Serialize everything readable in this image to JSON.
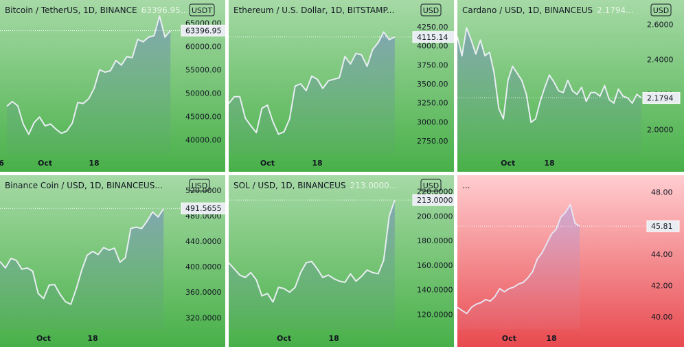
{
  "chart_data": [
    {
      "type": "area",
      "symbol": "Bitcoin / TetherUS, 1D, BINANCE",
      "last_label": "63396.95...",
      "currency": "USDT",
      "last_value": "63396.95",
      "theme": "green",
      "x_ticks": [
        {
          "i": -1,
          "label": "6"
        },
        {
          "i": 7,
          "label": "Oct"
        },
        {
          "i": 16,
          "label": "18"
        }
      ],
      "y_ticks": [
        "65000.00",
        "60000.00",
        "55000.00",
        "50000.00",
        "45000.00",
        "40000.00"
      ],
      "ylim": [
        37000,
        67000
      ],
      "last": 63396.95,
      "values": [
        47200,
        48200,
        47300,
        43400,
        41200,
        43700,
        44900,
        43000,
        43400,
        42300,
        41400,
        41900,
        43600,
        48000,
        47800,
        48800,
        51000,
        55000,
        54500,
        54800,
        57000,
        56000,
        57800,
        57600,
        61500,
        61000,
        62000,
        62300,
        66500,
        62000,
        63400
      ]
    },
    {
      "type": "area",
      "symbol": "Ethereum / U.S. Dollar, 1D, BITSTAMP...",
      "last_label": "",
      "currency": "USD",
      "last_value": "4115.14",
      "theme": "green",
      "x_ticks": [
        {
          "i": 7,
          "label": "Oct"
        },
        {
          "i": 16,
          "label": "18"
        }
      ],
      "y_ticks": [
        "4250.00",
        "4000.00",
        "3750.00",
        "3500.00",
        "3250.00",
        "3000.00",
        "2750.00"
      ],
      "ylim": [
        2580,
        4420
      ],
      "last": 4115.14,
      "values": [
        3240,
        3330,
        3330,
        3050,
        2950,
        2860,
        3180,
        3220,
        3000,
        2840,
        2870,
        3040,
        3470,
        3500,
        3410,
        3600,
        3560,
        3440,
        3540,
        3560,
        3580,
        3860,
        3760,
        3900,
        3880,
        3730,
        3950,
        4040,
        4180,
        4080,
        4115
      ]
    },
    {
      "type": "area",
      "symbol": "Cardano / USD, 1D, BINANCEUS",
      "last_label": "2.1794...",
      "currency": "USD",
      "last_value": "2.1794",
      "theme": "green",
      "x_ticks": [
        {
          "i": 11,
          "label": "Oct"
        },
        {
          "i": 20,
          "label": "18"
        }
      ],
      "y_ticks": [
        "2.6000",
        "2.4000",
        "2.2000",
        "2.0000"
      ],
      "ylim": [
        1.86,
        2.66
      ],
      "last": 2.1794,
      "values": [
        2.53,
        2.42,
        2.58,
        2.51,
        2.43,
        2.51,
        2.42,
        2.44,
        2.32,
        2.12,
        2.06,
        2.28,
        2.36,
        2.32,
        2.28,
        2.2,
        2.04,
        2.06,
        2.16,
        2.24,
        2.31,
        2.27,
        2.22,
        2.21,
        2.28,
        2.22,
        2.2,
        2.24,
        2.16,
        2.21,
        2.21,
        2.19,
        2.25,
        2.17,
        2.15,
        2.23,
        2.19,
        2.18,
        2.15,
        2.2,
        2.18
      ]
    },
    {
      "type": "area",
      "symbol": "Binance Coin / USD, 1D, BINANCEUS...",
      "last_label": "",
      "currency": "USD",
      "last_value": "491.5655",
      "theme": "green",
      "x_ticks": [
        {
          "i": 8,
          "label": "Oct"
        },
        {
          "i": 17,
          "label": "18"
        }
      ],
      "y_ticks": [
        "520.0000",
        "480.0000",
        "440.0000",
        "400.0000",
        "360.0000",
        "320.0000"
      ],
      "ylim": [
        302,
        522
      ],
      "last": 491.5655,
      "values": [
        408,
        398,
        413,
        410,
        396,
        398,
        393,
        358,
        350,
        371,
        372,
        357,
        345,
        341,
        366,
        395,
        418,
        424,
        419,
        430,
        426,
        429,
        407,
        414,
        460,
        462,
        460,
        472,
        486,
        478,
        491
      ]
    },
    {
      "type": "area",
      "symbol": "SOL / USD, 1D, BINANCEUS",
      "last_label": "213.0000...",
      "currency": "USD",
      "last_value": "213.0000",
      "theme": "green",
      "x_ticks": [
        {
          "i": 10,
          "label": "Oct"
        },
        {
          "i": 19,
          "label": "18"
        }
      ],
      "y_ticks": [
        "220.0000",
        "200.0000",
        "180.0000",
        "160.0000",
        "140.0000",
        "120.0000"
      ],
      "ylim": [
        108,
        222
      ],
      "last": 213.0,
      "values": [
        162,
        157,
        152,
        150,
        154,
        148,
        135,
        137,
        130,
        142,
        141,
        138,
        142,
        154,
        162,
        163,
        157,
        150,
        152,
        149,
        147,
        146,
        153,
        147,
        151,
        156,
        154,
        153,
        164,
        200,
        213
      ]
    },
    {
      "type": "area",
      "symbol": "...",
      "last_label": "",
      "currency": "",
      "last_value": "45.81",
      "theme": "red",
      "x_ticks": [
        {
          "i": 11,
          "label": "Oct"
        },
        {
          "i": 20,
          "label": "18"
        }
      ],
      "y_ticks": [
        "48.00",
        "46.00",
        "44.00",
        "42.00",
        "40.00"
      ],
      "ylim": [
        39.2,
        48.2
      ],
      "last": 45.81,
      "values": [
        40.6,
        40.4,
        40.2,
        40.6,
        40.8,
        40.9,
        41.1,
        41.0,
        41.3,
        41.8,
        41.6,
        41.8,
        41.9,
        42.1,
        42.2,
        42.5,
        42.9,
        43.7,
        44.1,
        44.7,
        45.3,
        45.6,
        46.4,
        46.7,
        47.2,
        46.0,
        45.81
      ]
    }
  ]
}
